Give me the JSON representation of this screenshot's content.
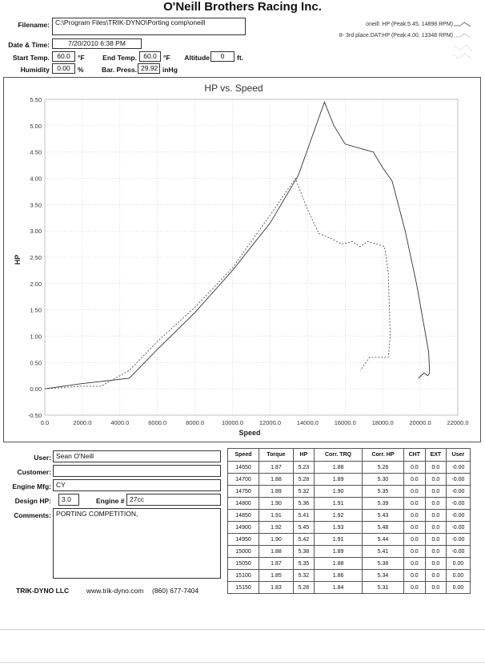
{
  "header": {
    "title": "O'Neill Brothers Racing Inc.",
    "filename_label": "Filename:",
    "filename": "C:\\Program Files\\TRIK-DYNO\\Porting comp\\oneill",
    "datetime_label": "Date & Time:",
    "datetime": "7/20/2010 6:38 PM",
    "start_temp_label": "Start Temp.",
    "start_temp": "60.0",
    "start_temp_unit": "°F",
    "end_temp_label": "End Temp.",
    "end_temp": "60.0",
    "end_temp_unit": "°F",
    "altitude_label": "Altitude",
    "altitude": "0",
    "altitude_unit": "ft.",
    "humidity_label": "Humidity",
    "humidity": "0.00",
    "humidity_unit": "%",
    "baro_label": "Bar. Press.",
    "baro": "29.92",
    "baro_unit": "inHg",
    "legend1": "oneill: HP (Peak:5.45, 14898 RPM)",
    "legend2": "8- 3rd place.DAT:HP (Peak:4.00, 13348 RPM)"
  },
  "chart_data": {
    "type": "line",
    "title": "HP vs. Speed",
    "xlabel": "Speed",
    "ylabel": "HP",
    "xlim": [
      0,
      22000
    ],
    "ylim": [
      -0.5,
      5.5
    ],
    "xticks": [
      "0.0",
      "2000.0",
      "4000.0",
      "6000.0",
      "8000.0",
      "10000.0",
      "12000.0",
      "14000.0",
      "16000.0",
      "18000.0",
      "20000.0",
      "22000.0"
    ],
    "yticks": [
      "5.50",
      "5.00",
      "4.50",
      "4.00",
      "3.50",
      "3.00",
      "2.50",
      "2.00",
      "1.50",
      "1.00",
      "0.50",
      "0.00",
      "-0.50"
    ],
    "grid": true,
    "series": [
      {
        "name": "oneill: HP (Peak:5.45, 14898 RPM)",
        "style": "solid",
        "color": "#333333",
        "x": [
          0,
          2000,
          4500,
          6000,
          8000,
          10000,
          12000,
          13500,
          14898,
          15400,
          16000,
          17000,
          17500,
          18000,
          18500,
          19200,
          19800,
          20200,
          20450,
          20500,
          20400,
          20200,
          19900
        ],
        "y": [
          0.0,
          0.1,
          0.2,
          0.75,
          1.45,
          2.25,
          3.15,
          4.05,
          5.45,
          5.0,
          4.65,
          4.55,
          4.5,
          4.2,
          3.95,
          3.0,
          2.0,
          1.2,
          0.7,
          0.3,
          0.25,
          0.3,
          0.2
        ]
      },
      {
        "name": "8- 3rd place.DAT:HP (Peak:4.00, 13348 RPM)",
        "style": "dashed",
        "color": "#555555",
        "x": [
          0,
          2000,
          3000,
          4500,
          6000,
          8000,
          10000,
          12000,
          13348,
          14000,
          14600,
          15300,
          15800,
          16400,
          16800,
          17200,
          17700,
          18100,
          18300,
          18400,
          18300,
          18000,
          17300,
          16800
        ],
        "y": [
          0.0,
          0.05,
          0.05,
          0.35,
          0.9,
          1.55,
          2.3,
          3.3,
          4.0,
          3.4,
          2.95,
          2.85,
          2.75,
          2.8,
          2.7,
          2.8,
          2.75,
          2.7,
          2.2,
          1.0,
          0.6,
          0.6,
          0.6,
          0.35
        ]
      }
    ]
  },
  "info": {
    "user_label": "User:",
    "user": "Sean O'Neill",
    "customer_label": "Customer:",
    "customer": "",
    "engine_mfg_label": "Engine Mfg:",
    "engine_mfg": "CY",
    "design_hp_label": "Design HP:",
    "design_hp": "3.0",
    "engine_num_label": "Engine #",
    "engine_num": "27cc",
    "comments_label": "Comments:",
    "comments": "PORTING COMPETITION,"
  },
  "table": {
    "headers": [
      "Speed",
      "Torque",
      "HP",
      "Corr. TRQ",
      "Corr. HP",
      "CHT",
      "EXT",
      "User"
    ],
    "rows": [
      [
        "14650",
        "1.87",
        "5.23",
        "1.88",
        "5.26",
        "0.0",
        "0.0",
        "-0.00"
      ],
      [
        "14700",
        "1.88",
        "5.28",
        "1.89",
        "5.30",
        "0.0",
        "0.0",
        "-0.00"
      ],
      [
        "14750",
        "1.89",
        "5.32",
        "1.90",
        "5.35",
        "0.0",
        "0.0",
        "-0.00"
      ],
      [
        "14800",
        "1.90",
        "5.36",
        "1.91",
        "5.39",
        "0.0",
        "0.0",
        "-0.00"
      ],
      [
        "14850",
        "1.91",
        "5.41",
        "1.92",
        "5.43",
        "0.0",
        "0.0",
        "-0.00"
      ],
      [
        "14900",
        "1.92",
        "5.45",
        "1.93",
        "5.48",
        "0.0",
        "0.0",
        "-0.00"
      ],
      [
        "14950",
        "1.90",
        "5.42",
        "1.91",
        "5.44",
        "0.0",
        "0.0",
        "-0.00"
      ],
      [
        "15000",
        "1.88",
        "5.38",
        "1.89",
        "5.41",
        "0.0",
        "0.0",
        "-0.00"
      ],
      [
        "15050",
        "1.87",
        "5.35",
        "1.88",
        "5.38",
        "0.0",
        "0.0",
        "0.00"
      ],
      [
        "15100",
        "1.85",
        "5.32",
        "1.86",
        "5.34",
        "0.0",
        "0.0",
        "0.00"
      ],
      [
        "15150",
        "1.83",
        "5.28",
        "1.84",
        "5.31",
        "0.0",
        "0.0",
        "0.00"
      ]
    ]
  },
  "footer": {
    "company": "TRIK-DYNO LLC",
    "website": "www.trik-dyno.com",
    "phone": "(860) 677-7404"
  }
}
